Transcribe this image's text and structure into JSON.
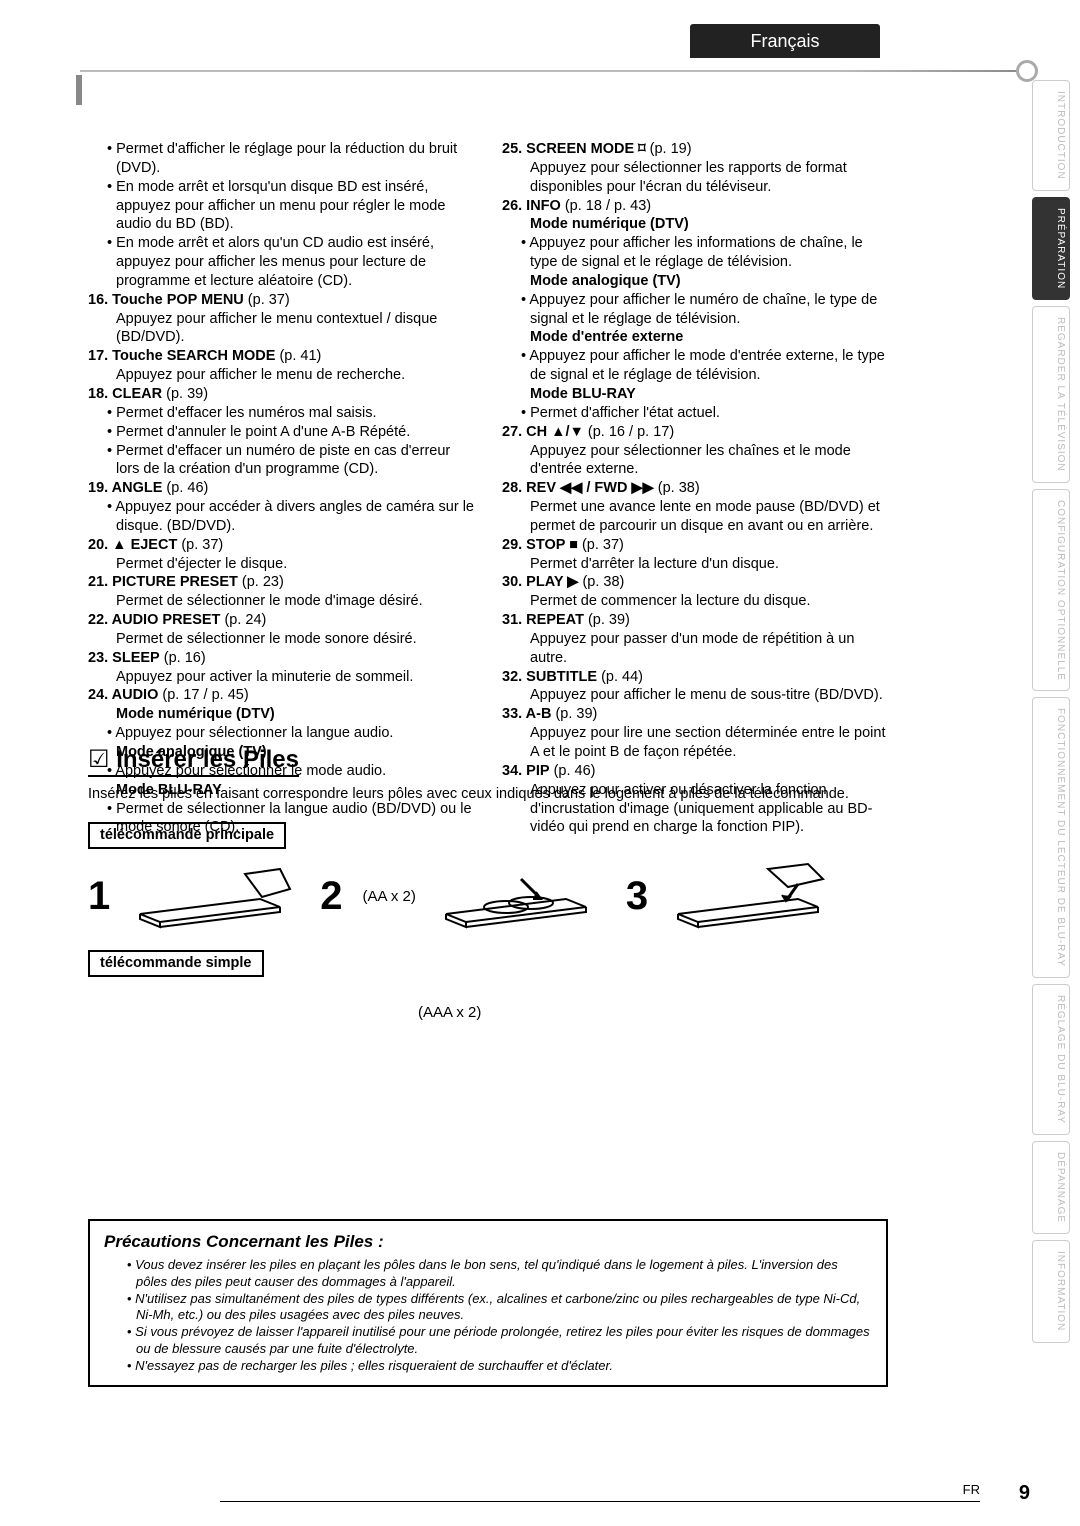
{
  "language_tab": "Français",
  "nav": [
    {
      "label": "INTRODUCTION",
      "active": false
    },
    {
      "label": "PRÉPARATION",
      "active": true
    },
    {
      "label": "REGARDER LA TÉLÉVISION",
      "active": false
    },
    {
      "label": "CONFIGURATION OPTIONNELLE",
      "active": false
    },
    {
      "label": "FONCTIONNEMENT DU LECTEUR DE BLU-RAY",
      "active": false
    },
    {
      "label": "RÉGLAGE DU BLU-RAY",
      "active": false
    },
    {
      "label": "DÉPANNAGE",
      "active": false
    },
    {
      "label": "INFORMATION",
      "active": false
    }
  ],
  "left_col": [
    {
      "type": "bullet",
      "text": "Permet d'afficher le réglage pour la réduction du bruit (DVD)."
    },
    {
      "type": "bullet",
      "text": "En mode arrêt et lorsqu'un disque BD est inséré, appuyez pour afficher un menu pour régler le mode audio du BD (BD)."
    },
    {
      "type": "bullet",
      "text": "En mode arrêt et alors qu'un CD audio est inséré, appuyez pour afficher les menus pour lecture de programme et lecture aléatoire (CD)."
    },
    {
      "type": "num",
      "num": "16.",
      "bold": "Touche POP MENU",
      "after": " (p. 37)"
    },
    {
      "type": "plain",
      "text": "Appuyez pour afficher le menu contextuel / disque (BD/DVD)."
    },
    {
      "type": "num",
      "num": "17.",
      "bold": "Touche SEARCH MODE",
      "after": " (p. 41)"
    },
    {
      "type": "plain",
      "text": "Appuyez pour afficher le menu de recherche."
    },
    {
      "type": "num",
      "num": "18.",
      "bold": "CLEAR",
      "after": " (p. 39)"
    },
    {
      "type": "bullet",
      "text": "Permet d'effacer les numéros mal saisis."
    },
    {
      "type": "bullet",
      "text": "Permet d'annuler le point A d'une A-B Répété."
    },
    {
      "type": "bullet",
      "text": "Permet d'effacer un numéro de piste en cas d'erreur lors de la création d'un programme (CD)."
    },
    {
      "type": "num",
      "num": "19.",
      "bold": "ANGLE",
      "after": " (p. 46)"
    },
    {
      "type": "bullet",
      "text": "Appuyez pour accéder à divers angles de caméra sur le disque. (BD/DVD)."
    },
    {
      "type": "num",
      "num": "20.",
      "bold": "▲ EJECT",
      "after": " (p. 37)"
    },
    {
      "type": "plain",
      "text": "Permet d'éjecter le disque."
    },
    {
      "type": "num",
      "num": "21.",
      "bold": "PICTURE PRESET",
      "after": " (p. 23)"
    },
    {
      "type": "plain",
      "text": "Permet de sélectionner le mode d'image désiré."
    },
    {
      "type": "num",
      "num": "22.",
      "bold": "AUDIO PRESET",
      "after": " (p. 24)"
    },
    {
      "type": "plain",
      "text": "Permet de sélectionner le mode sonore désiré."
    },
    {
      "type": "num",
      "num": "23.",
      "bold": "SLEEP",
      "after": " (p. 16)"
    },
    {
      "type": "plain",
      "text": "Appuyez pour activer la minuterie de sommeil."
    },
    {
      "type": "num",
      "num": "24.",
      "bold": "AUDIO",
      "after": " (p. 17 / p. 45)"
    },
    {
      "type": "boldline",
      "text": "Mode numérique (DTV)"
    },
    {
      "type": "bullet",
      "text": "Appuyez pour sélectionner la langue audio."
    },
    {
      "type": "boldline",
      "text": "Mode analogique (TV)"
    },
    {
      "type": "bullet",
      "text": "Appuyez pour sélectionner le mode audio."
    },
    {
      "type": "boldline",
      "text": "Mode BLU-RAY"
    },
    {
      "type": "bullet",
      "text": "Permet de sélectionner la langue audio (BD/DVD) ou le mode sonore (CD)."
    }
  ],
  "right_col": [
    {
      "type": "num",
      "num": "25.",
      "bold": "SCREEN MODE ⌑",
      "after": " (p. 19)"
    },
    {
      "type": "plain",
      "text": "Appuyez pour sélectionner les rapports de format disponibles pour l'écran du téléviseur."
    },
    {
      "type": "num",
      "num": "26.",
      "bold": "INFO",
      "after": " (p. 18 / p. 43)"
    },
    {
      "type": "boldline",
      "text": "Mode numérique (DTV)"
    },
    {
      "type": "bullet",
      "text": "Appuyez pour afficher les informations de chaîne, le type de signal et le réglage de télévision."
    },
    {
      "type": "boldline",
      "text": "Mode analogique (TV)"
    },
    {
      "type": "bullet",
      "text": "Appuyez pour afficher le numéro de chaîne, le type de signal et le réglage de télévision."
    },
    {
      "type": "boldline",
      "text": "Mode d'entrée externe"
    },
    {
      "type": "bullet",
      "text": "Appuyez pour afficher le mode d'entrée externe, le type de signal et le réglage de télévision."
    },
    {
      "type": "boldline",
      "text": "Mode BLU-RAY"
    },
    {
      "type": "bullet",
      "text": "Permet d'afficher l'état actuel."
    },
    {
      "type": "num",
      "num": "27.",
      "bold": "CH ▲/▼",
      "after": " (p. 16 / p. 17)"
    },
    {
      "type": "plain",
      "text": "Appuyez pour sélectionner les chaînes et le mode d'entrée externe."
    },
    {
      "type": "num",
      "num": "28.",
      "bold": "REV ◀◀ / FWD ▶▶",
      "after": " (p. 38)"
    },
    {
      "type": "plain",
      "text": "Permet une avance lente en mode pause (BD/DVD) et permet de parcourir un disque en avant ou en arrière."
    },
    {
      "type": "num",
      "num": "29.",
      "bold": "STOP ■",
      "after": " (p. 37)"
    },
    {
      "type": "plain",
      "text": "Permet d'arrêter la lecture d'un disque."
    },
    {
      "type": "num",
      "num": "30.",
      "bold": "PLAY ▶",
      "after": " (p. 38)"
    },
    {
      "type": "plain",
      "text": "Permet de commencer la lecture du disque."
    },
    {
      "type": "num",
      "num": "31.",
      "bold": "REPEAT",
      "after": " (p. 39)"
    },
    {
      "type": "plain",
      "text": "Appuyez pour passer d'un mode de répétition à un autre."
    },
    {
      "type": "num",
      "num": "32.",
      "bold": "SUBTITLE",
      "after": " (p. 44)"
    },
    {
      "type": "plain",
      "text": "Appuyez pour afficher le menu de sous-titre (BD/DVD)."
    },
    {
      "type": "num",
      "num": "33.",
      "bold": "A-B",
      "after": " (p. 39)"
    },
    {
      "type": "plain",
      "text": "Appuyez pour lire une section déterminée entre le point A et le point B de façon répétée."
    },
    {
      "type": "num",
      "num": "34.",
      "bold": "PIP",
      "after": " (p. 46)"
    },
    {
      "type": "plain",
      "text": "Appuyez pour activer ou désactiver la fonction d'incrustation d'image (uniquement applicable au BD-vidéo qui prend en charge la fonction PIP)."
    }
  ],
  "insert_section": {
    "title": "Insérer les Piles",
    "intro": "Insérez les piles en faisant correspondre leurs pôles avec ceux indiqués dans le logement à piles de la télécommande.",
    "label1": "télécommande principale",
    "label2": "télécommande simple",
    "aa": "(AA x 2)",
    "aaa": "(AAA x 2)",
    "step_nums": [
      "1",
      "2",
      "3"
    ]
  },
  "precautions": {
    "title": "Précautions Concernant les Piles :",
    "items": [
      "Vous devez insérer les piles en plaçant les pôles dans le bon sens, tel qu'indiqué dans le logement à piles. L'inversion des pôles des piles peut causer des dommages à l'appareil.",
      "N'utilisez pas simultanément des piles de types différents (ex., alcalines et carbone/zinc ou piles rechargeables de type Ni-Cd, Ni-Mh, etc.) ou des piles usagées avec des piles neuves.",
      "Si vous prévoyez de laisser l'appareil inutilisé pour une période prolongée, retirez les piles pour éviter les risques de dommages ou de blessure causés par une fuite d'électrolyte.",
      "N'essayez pas de recharger les piles ; elles risqueraient de surchauffer et d'éclater."
    ]
  },
  "footer": {
    "fr": "FR",
    "page": "9"
  },
  "colors": {
    "page_bg": "#ffffff",
    "text": "#000000",
    "rule_gray": "#bbbbbb",
    "tab_bg": "#222222",
    "nav_inactive_text": "#bbbbbb",
    "nav_active_bg": "#333333"
  }
}
